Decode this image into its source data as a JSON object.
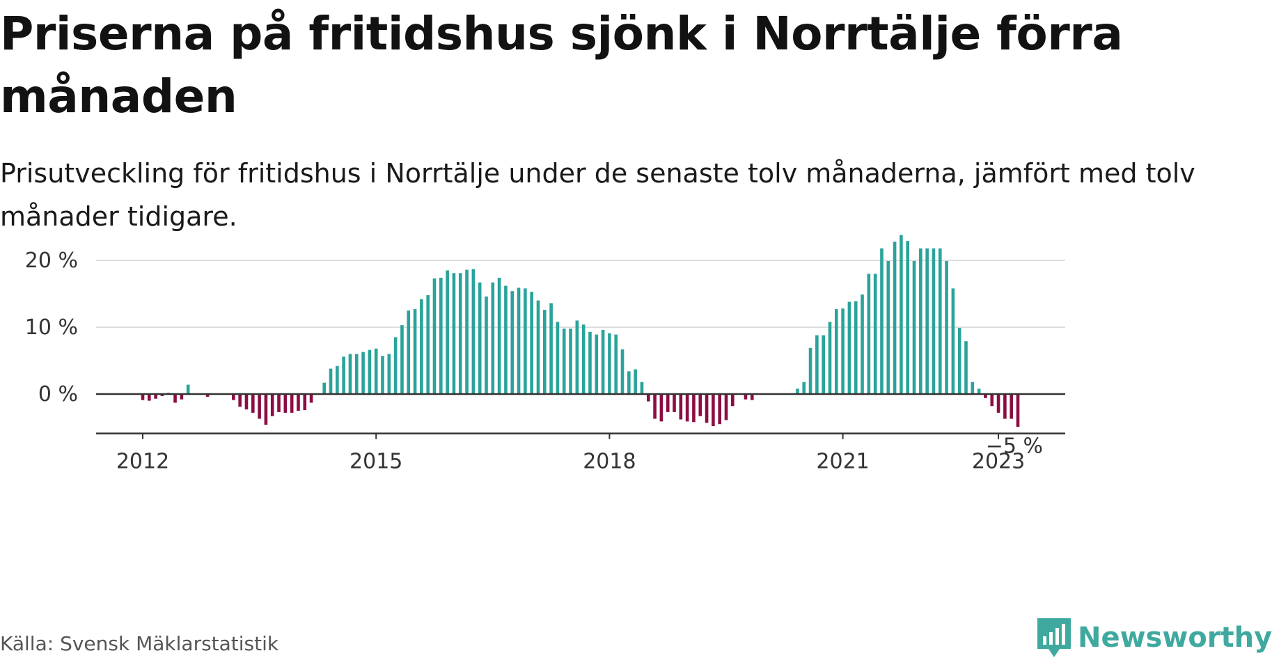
{
  "title": "Priserna på fritidshus sjönk i Norrtälje förra månaden",
  "subtitle": "Prisutveckling för fritidshus i Norrtälje under de senaste tolv månaderna, jämfört med tolv månader tidigare.",
  "source": "Källa: Svensk Mäklarstatistik",
  "brand": {
    "name": "Newsworthy",
    "icon": "newsworthy-logo-icon"
  },
  "colors": {
    "positive": "#2aa39a",
    "negative": "#8c0d43",
    "grid": "#dddddd",
    "axis": "#333333"
  },
  "chart_data": {
    "type": "bar",
    "x_start": "2011-06",
    "x_end": "2023-04",
    "ylim": [
      -5.8,
      24
    ],
    "y_ticks": [
      {
        "value": 0,
        "label": "0 %"
      },
      {
        "value": 10,
        "label": "10 %"
      },
      {
        "value": 20,
        "label": "20 %"
      }
    ],
    "x_ticks": [
      {
        "date": "2012-01",
        "label": "2012"
      },
      {
        "date": "2015-01",
        "label": "2015"
      },
      {
        "date": "2018-01",
        "label": "2018"
      },
      {
        "date": "2021-01",
        "label": "2021"
      },
      {
        "date": "2023-01",
        "label": "2023"
      }
    ],
    "grid": true,
    "last_label": "−5 %",
    "series": [
      {
        "values": [
          [
            "2012-01",
            -0.9
          ],
          [
            "2012-02",
            -1.0
          ],
          [
            "2012-03",
            -0.7
          ],
          [
            "2012-04",
            -0.3
          ],
          [
            "2012-05",
            0.2
          ],
          [
            "2012-06",
            -1.3
          ],
          [
            "2012-07",
            -0.8
          ],
          [
            "2012-08",
            1.4
          ],
          [
            "2012-11",
            -0.4
          ],
          [
            "2013-03",
            -0.9
          ],
          [
            "2013-04",
            -1.9
          ],
          [
            "2013-05",
            -2.3
          ],
          [
            "2013-06",
            -2.8
          ],
          [
            "2013-07",
            -3.7
          ],
          [
            "2013-08",
            -4.6
          ],
          [
            "2013-09",
            -3.3
          ],
          [
            "2013-10",
            -2.7
          ],
          [
            "2013-11",
            -2.8
          ],
          [
            "2013-12",
            -2.8
          ],
          [
            "2014-01",
            -2.5
          ],
          [
            "2014-02",
            -2.4
          ],
          [
            "2014-03",
            -1.3
          ],
          [
            "2014-05",
            1.7
          ],
          [
            "2014-06",
            3.8
          ],
          [
            "2014-07",
            4.2
          ],
          [
            "2014-08",
            5.6
          ],
          [
            "2014-09",
            6.0
          ],
          [
            "2014-10",
            6.0
          ],
          [
            "2014-11",
            6.3
          ],
          [
            "2014-12",
            6.6
          ],
          [
            "2015-01",
            6.8
          ],
          [
            "2015-02",
            5.7
          ],
          [
            "2015-03",
            6.0
          ],
          [
            "2015-04",
            8.5
          ],
          [
            "2015-05",
            10.3
          ],
          [
            "2015-06",
            12.5
          ],
          [
            "2015-07",
            12.7
          ],
          [
            "2015-08",
            14.2
          ],
          [
            "2015-09",
            14.8
          ],
          [
            "2015-10",
            17.3
          ],
          [
            "2015-11",
            17.4
          ],
          [
            "2015-12",
            18.5
          ],
          [
            "2016-01",
            18.1
          ],
          [
            "2016-02",
            18.1
          ],
          [
            "2016-03",
            18.6
          ],
          [
            "2016-04",
            18.7
          ],
          [
            "2016-05",
            16.7
          ],
          [
            "2016-06",
            14.6
          ],
          [
            "2016-07",
            16.7
          ],
          [
            "2016-08",
            17.4
          ],
          [
            "2016-09",
            16.2
          ],
          [
            "2016-10",
            15.4
          ],
          [
            "2016-11",
            15.9
          ],
          [
            "2016-12",
            15.8
          ],
          [
            "2017-01",
            15.3
          ],
          [
            "2017-02",
            14.0
          ],
          [
            "2017-03",
            12.6
          ],
          [
            "2017-04",
            13.6
          ],
          [
            "2017-05",
            10.8
          ],
          [
            "2017-06",
            9.8
          ],
          [
            "2017-07",
            9.8
          ],
          [
            "2017-08",
            11.0
          ],
          [
            "2017-09",
            10.4
          ],
          [
            "2017-10",
            9.3
          ],
          [
            "2017-11",
            8.9
          ],
          [
            "2017-12",
            9.6
          ],
          [
            "2018-01",
            9.1
          ],
          [
            "2018-02",
            8.9
          ],
          [
            "2018-03",
            6.7
          ],
          [
            "2018-04",
            3.4
          ],
          [
            "2018-05",
            3.7
          ],
          [
            "2018-06",
            1.8
          ],
          [
            "2018-07",
            -1.1
          ],
          [
            "2018-08",
            -3.7
          ],
          [
            "2018-09",
            -4.1
          ],
          [
            "2018-10",
            -2.7
          ],
          [
            "2018-11",
            -2.7
          ],
          [
            "2018-12",
            -3.8
          ],
          [
            "2019-01",
            -4.1
          ],
          [
            "2019-02",
            -4.2
          ],
          [
            "2019-03",
            -3.3
          ],
          [
            "2019-04",
            -4.3
          ],
          [
            "2019-05",
            -4.8
          ],
          [
            "2019-06",
            -4.5
          ],
          [
            "2019-07",
            -3.9
          ],
          [
            "2019-08",
            -1.8
          ],
          [
            "2019-10",
            -0.8
          ],
          [
            "2019-11",
            -0.9
          ],
          [
            "2020-06",
            0.8
          ],
          [
            "2020-07",
            1.8
          ],
          [
            "2020-08",
            6.9
          ],
          [
            "2020-09",
            8.8
          ],
          [
            "2020-10",
            8.8
          ],
          [
            "2020-11",
            10.8
          ],
          [
            "2020-12",
            12.7
          ],
          [
            "2021-01",
            12.8
          ],
          [
            "2021-02",
            13.8
          ],
          [
            "2021-03",
            13.9
          ],
          [
            "2021-04",
            14.9
          ],
          [
            "2021-05",
            18.0
          ],
          [
            "2021-06",
            18.0
          ],
          [
            "2021-07",
            21.8
          ],
          [
            "2021-08",
            19.9
          ],
          [
            "2021-09",
            22.8
          ],
          [
            "2021-10",
            23.8
          ],
          [
            "2021-11",
            22.9
          ],
          [
            "2021-12",
            19.9
          ],
          [
            "2022-01",
            21.8
          ],
          [
            "2022-02",
            21.8
          ],
          [
            "2022-03",
            21.8
          ],
          [
            "2022-04",
            21.8
          ],
          [
            "2022-05",
            19.9
          ],
          [
            "2022-06",
            15.8
          ],
          [
            "2022-07",
            9.9
          ],
          [
            "2022-08",
            7.9
          ],
          [
            "2022-09",
            1.8
          ],
          [
            "2022-10",
            0.8
          ],
          [
            "2022-11",
            -0.6
          ],
          [
            "2022-12",
            -1.8
          ],
          [
            "2023-01",
            -2.8
          ],
          [
            "2023-02",
            -3.7
          ],
          [
            "2023-03",
            -3.7
          ],
          [
            "2023-04",
            -4.9
          ]
        ]
      }
    ]
  }
}
